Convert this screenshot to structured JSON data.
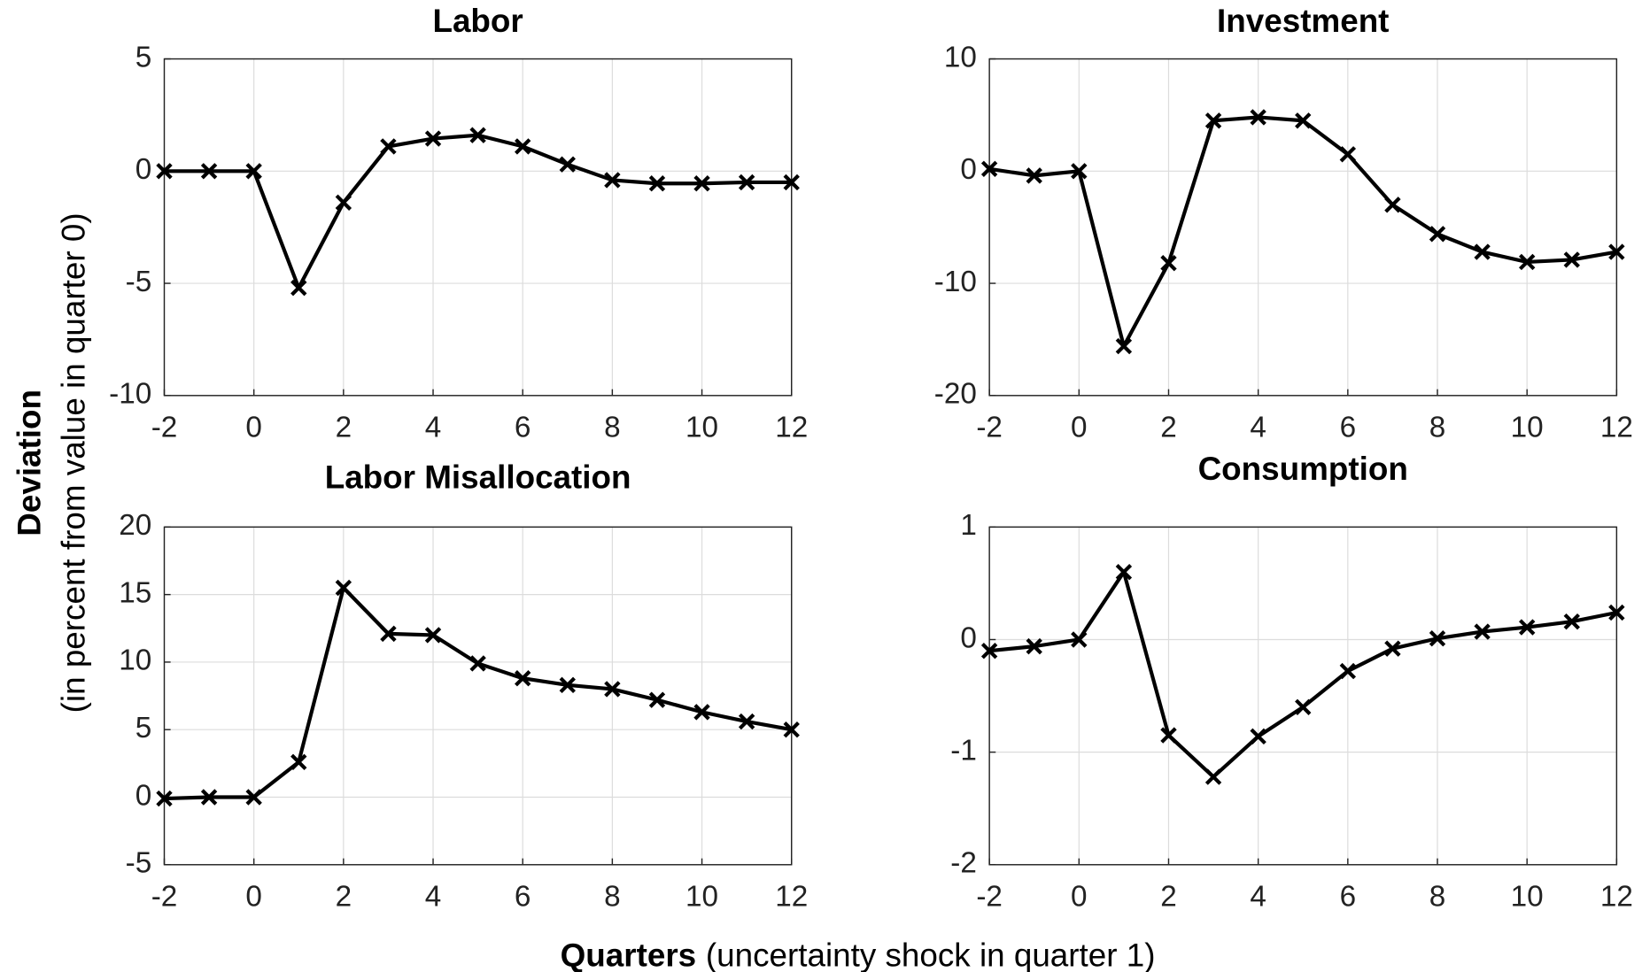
{
  "ylabel_bold": "Deviation",
  "ylabel": "(in percent from value in quarter 0)",
  "xlabel_bold": "Quarters",
  "xlabel": "(uncertainty shock in quarter 1)",
  "chart_data": [
    {
      "type": "line",
      "title": "Labor",
      "x": [
        -2,
        -1,
        0,
        1,
        2,
        3,
        4,
        5,
        6,
        7,
        8,
        9,
        10,
        11,
        12
      ],
      "series": [
        {
          "color": "#000000",
          "marker": "x",
          "values": [
            0,
            0,
            0,
            -5.2,
            -1.4,
            1.1,
            1.45,
            1.6,
            1.1,
            0.3,
            -0.4,
            -0.55,
            -0.55,
            -0.5,
            -0.5
          ]
        }
      ],
      "xlim": [
        -2,
        12
      ],
      "xticks": [
        -2,
        0,
        2,
        4,
        6,
        8,
        10,
        12
      ],
      "ylim": [
        -10,
        5
      ],
      "yticks": [
        -10,
        -5,
        0,
        5
      ],
      "grid": true
    },
    {
      "type": "line",
      "title": "Investment",
      "x": [
        -2,
        -1,
        0,
        1,
        2,
        3,
        4,
        5,
        6,
        7,
        8,
        9,
        10,
        11,
        12
      ],
      "series": [
        {
          "color": "#000000",
          "marker": "x",
          "values": [
            0.2,
            -0.4,
            0,
            -15.6,
            -8.2,
            4.5,
            4.8,
            4.5,
            1.5,
            -3,
            -5.6,
            -7.2,
            -8.1,
            -7.9,
            -7.2
          ]
        }
      ],
      "xlim": [
        -2,
        12
      ],
      "xticks": [
        -2,
        0,
        2,
        4,
        6,
        8,
        10,
        12
      ],
      "ylim": [
        -20,
        10
      ],
      "yticks": [
        -20,
        -10,
        0,
        10
      ],
      "grid": true
    },
    {
      "type": "line",
      "title": "Labor Misallocation",
      "x": [
        -2,
        -1,
        0,
        1,
        2,
        3,
        4,
        5,
        6,
        7,
        8,
        9,
        10,
        11,
        12
      ],
      "series": [
        {
          "color": "#000000",
          "marker": "x",
          "values": [
            -0.1,
            0,
            0,
            2.6,
            15.5,
            12.1,
            12,
            9.9,
            8.8,
            8.3,
            8,
            7.2,
            6.3,
            5.6,
            5
          ]
        }
      ],
      "xlim": [
        -2,
        12
      ],
      "xticks": [
        -2,
        0,
        2,
        4,
        6,
        8,
        10,
        12
      ],
      "ylim": [
        -5,
        20
      ],
      "yticks": [
        -5,
        0,
        5,
        10,
        15,
        20
      ],
      "grid": true
    },
    {
      "type": "line",
      "title": "Consumption",
      "x": [
        -2,
        -1,
        0,
        1,
        2,
        3,
        4,
        5,
        6,
        7,
        8,
        9,
        10,
        11,
        12
      ],
      "series": [
        {
          "color": "#000000",
          "marker": "x",
          "values": [
            -0.1,
            -0.06,
            0,
            0.6,
            -0.85,
            -1.22,
            -0.86,
            -0.6,
            -0.28,
            -0.08,
            0.01,
            0.07,
            0.11,
            0.16,
            0.24
          ]
        }
      ],
      "xlim": [
        -2,
        12
      ],
      "xticks": [
        -2,
        0,
        2,
        4,
        6,
        8,
        10,
        12
      ],
      "ylim": [
        -2,
        1
      ],
      "yticks": [
        -2,
        -1,
        0,
        1
      ],
      "grid": true
    }
  ]
}
